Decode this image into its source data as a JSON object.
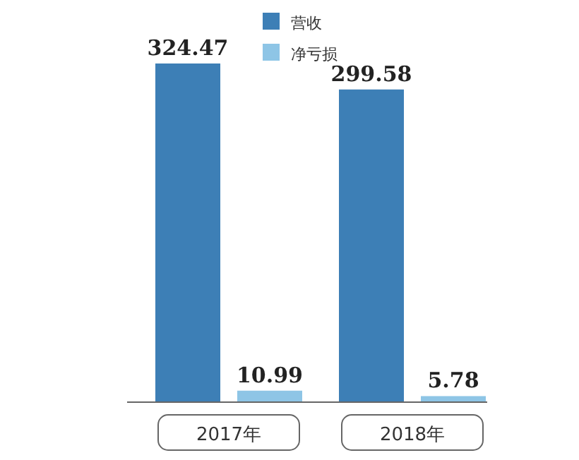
{
  "chart_data": {
    "type": "bar",
    "categories": [
      "2017年",
      "2018年"
    ],
    "series": [
      {
        "name": "营收",
        "color": "#3d7fb6",
        "values": [
          324.47,
          299.58
        ]
      },
      {
        "name": "净亏损",
        "color": "#8ec5e6",
        "values": [
          10.99,
          5.78
        ]
      }
    ],
    "data_labels": true,
    "legend": "top"
  }
}
